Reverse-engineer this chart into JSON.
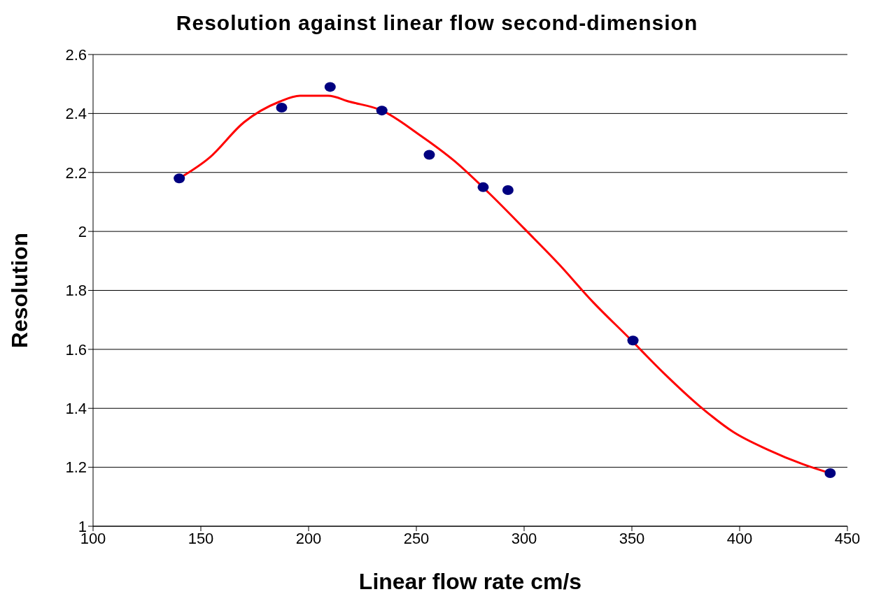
{
  "chart_data": {
    "type": "scatter",
    "title": "Resolution against linear flow second-dimension",
    "xlabel": "Linear flow rate cm/s",
    "ylabel": "Resolution",
    "xlim": [
      100,
      450
    ],
    "xticks": [
      100,
      150,
      200,
      250,
      300,
      350,
      400,
      450
    ],
    "ylim": [
      1,
      2.6
    ],
    "yticks": [
      1,
      1.2,
      1.4,
      1.6,
      1.8,
      2,
      2.2,
      2.4,
      2.6
    ],
    "grid": "y",
    "legend": false,
    "series": [
      {
        "marker": "circle",
        "color": "#000080",
        "x": [
          140,
          187.5,
          210,
          234,
          256,
          281,
          292.5,
          350.5,
          442
        ],
        "values": [
          2.18,
          2.42,
          2.49,
          2.41,
          2.26,
          2.15,
          2.14,
          1.63,
          1.18
        ]
      },
      {
        "type": "line",
        "marker": "none",
        "line_style": "solid",
        "color": "#ff0000",
        "x": [
          140,
          154,
          170,
          186.5,
          196,
          209,
          219,
          234,
          251,
          267.5,
          283.7,
          300,
          316,
          332,
          348.5,
          364.7,
          381,
          397,
          413,
          429.5,
          442
        ],
        "values": [
          2.18,
          2.25,
          2.37,
          2.44,
          2.46,
          2.46,
          2.44,
          2.41,
          2.33,
          2.24,
          2.13,
          2.01,
          1.89,
          1.76,
          1.64,
          1.52,
          1.41,
          1.32,
          1.26,
          1.21,
          1.18
        ]
      }
    ]
  }
}
